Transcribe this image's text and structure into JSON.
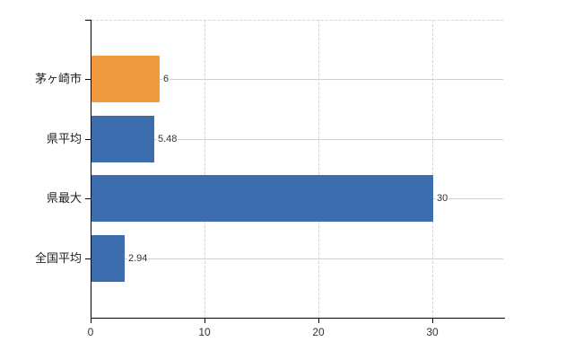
{
  "chart_data": {
    "type": "bar",
    "orientation": "horizontal",
    "title": "",
    "categories": [
      "茅ヶ崎市",
      "県平均",
      "県最大",
      "全国平均"
    ],
    "values": [
      6,
      5.48,
      30,
      2.94
    ],
    "value_labels": [
      "6",
      "5.48",
      "30",
      "2.94"
    ],
    "x_ticks": [
      0,
      10,
      20,
      30
    ],
    "x_tick_labels": [
      "0",
      "10",
      "20",
      "30"
    ],
    "xlim": [
      0,
      36.3
    ],
    "bar_colors": [
      "#f09b40",
      "#3c6eaf",
      "#3c6eaf",
      "#3c6eaf"
    ],
    "grid": {
      "vertical": "dashed",
      "horizontal": "solid",
      "top_border": "dashed"
    },
    "legend": "",
    "colors": {
      "axis": "#000000",
      "grid_vertical": "#d6d2d6",
      "grid_horizontal": "#ccd4cc",
      "category_label": "#222222",
      "value_label": "#333333",
      "background": "#ffffff"
    }
  }
}
